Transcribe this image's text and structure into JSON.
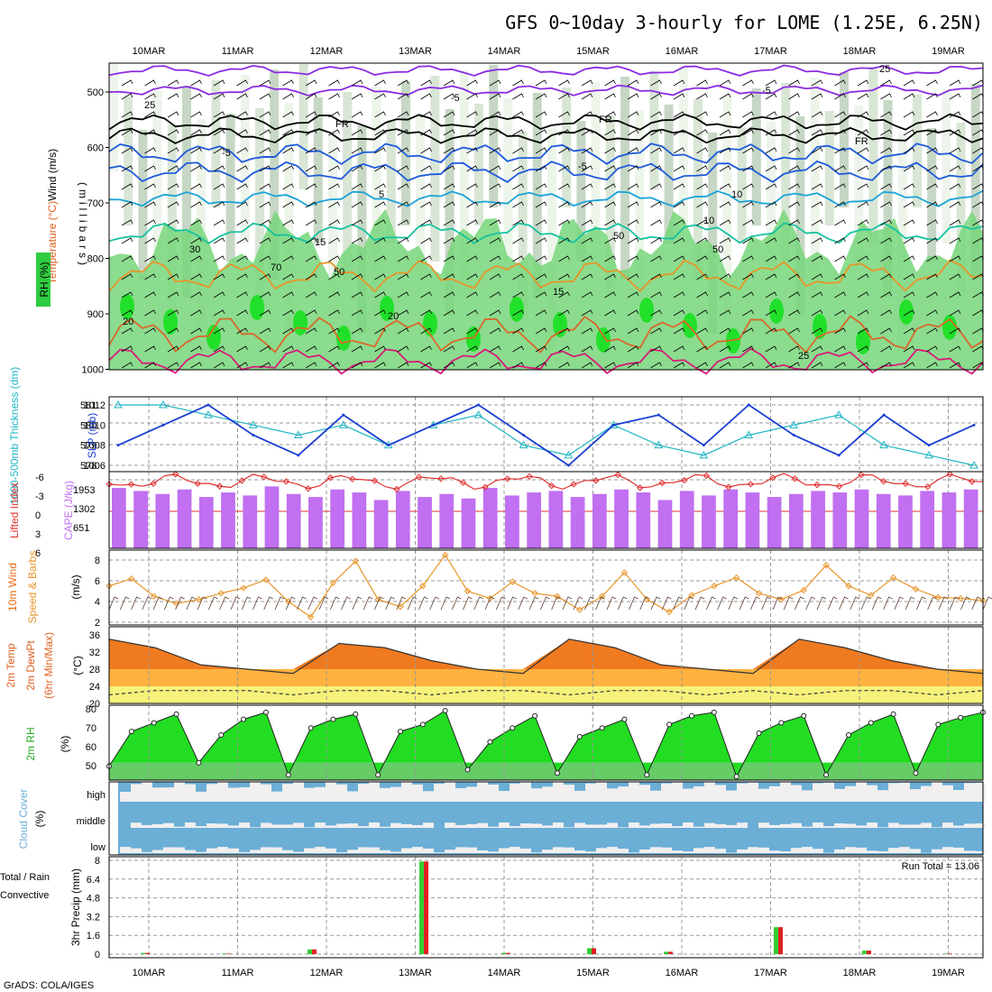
{
  "title": "GFS 0~10day 3-hourly for LOME (1.25E, 6.25N)",
  "credit": "GrADS: COLA/IGES",
  "dates": [
    "10MAR",
    "11MAR",
    "12MAR",
    "13MAR",
    "14MAR",
    "15MAR",
    "16MAR",
    "17MAR",
    "18MAR",
    "19MAR"
  ],
  "colors": {
    "rh_green": "#2ecc40",
    "temp_purple": "#8a2be2",
    "temp_blue": "#1e5adc",
    "temp_cyan": "#1aa3d9",
    "temp_teal": "#17c2a0",
    "temp_orange": "#e8952a",
    "temp_dark_orange": "#d9682a",
    "temp_magenta": "#d81b7a",
    "slp_blue": "#1a3fd1",
    "thickness_cyan": "#1fb5c4",
    "cape_violet": "#c070f0",
    "li_red": "#e03030",
    "wind_orange": "#e8952a",
    "rh2m_green": "#00cc00",
    "cloud_blue": "#6baed6",
    "precip_green": "#33cc33",
    "precip_red": "#e02020"
  },
  "panels": {
    "upper": {
      "y_ticks": [
        "500",
        "600",
        "700",
        "800",
        "900",
        "1000"
      ],
      "left_labels": [
        "Wind (m/s)",
        "Temperature (°C)",
        "RH (%)"
      ],
      "ylabel": "(millibars)",
      "contour_labels": [
        "-5",
        "-5",
        "FR",
        "FR",
        "FR",
        "-5",
        "-5",
        "5",
        "10",
        "10",
        "15",
        "15",
        "20",
        "20",
        "25",
        "25",
        "25",
        "30",
        "50",
        "50",
        "50",
        "70"
      ]
    },
    "slp": {
      "left_ticks": [
        "578",
        "579",
        "580",
        "581"
      ],
      "right_ticks": [
        "1006",
        "1008",
        "1010",
        "1012"
      ],
      "left_label": "1000-500mb Thickness (dm)",
      "right_label": "SLP (mb)"
    },
    "cape": {
      "left_ticks": [
        "-6",
        "-3",
        "0",
        "3",
        "6"
      ],
      "right_ticks": [
        "651",
        "1302",
        "1953"
      ],
      "left_label": "Lifted Index",
      "right_label": "CAPE (J/kg)"
    },
    "wind10": {
      "ticks": [
        "2",
        "4",
        "6",
        "8"
      ],
      "left_label": "10m Wind",
      "mid_label": "Speed & Barbs",
      "unit": "(m/s)"
    },
    "temp2m": {
      "ticks": [
        "20",
        "24",
        "28",
        "32",
        "36"
      ],
      "labels": [
        "2m Temp",
        "2m DewPt",
        "(6hr Min/Max)"
      ],
      "unit": "(°C)"
    },
    "rh2m": {
      "ticks": [
        "50",
        "60",
        "70",
        "80"
      ],
      "label": "2m RH",
      "unit": "(%)"
    },
    "cloud": {
      "levels": [
        "high",
        "middle",
        "low"
      ],
      "label": "Cloud Cover",
      "unit": "(%)"
    },
    "precip": {
      "ticks": [
        "0",
        "1.6",
        "3.2",
        "4.8",
        "6.4",
        "8"
      ],
      "label_total": "Total / Rain",
      "label_conv": "Convective",
      "ylabel": "3hr Precip (mm)",
      "run_total": "Run Total = 13.06"
    }
  },
  "chart_data": [
    {
      "type": "line",
      "title": "1000-500mb Thickness (dm) / SLP (mb)",
      "series": [
        {
          "name": "SLP (mb)",
          "values": [
            1008,
            1010,
            1012,
            1009,
            1007,
            1011,
            1008,
            1010,
            1012,
            1009,
            1006,
            1010,
            1011,
            1008,
            1012,
            1009,
            1007,
            1011,
            1008,
            1010
          ]
        },
        {
          "name": "1000-500mb Thickness (dm)",
          "values": [
            581,
            581,
            580.5,
            580,
            579.5,
            580,
            579,
            580,
            580.5,
            579,
            578.5,
            580,
            579,
            578.5,
            579.5,
            580,
            580.5,
            579,
            578.5,
            578
          ]
        }
      ]
    },
    {
      "type": "bar",
      "title": "CAPE (J/kg)",
      "values": [
        2000,
        1900,
        1800,
        1950,
        1700,
        1850,
        1750,
        2050,
        1800,
        1700,
        1950,
        1850,
        1600,
        1900,
        1700,
        1800,
        1650,
        2000,
        1750,
        1850,
        1900,
        1700,
        1800,
        1950,
        1850,
        1600,
        1900,
        1750,
        1950,
        1850,
        1700,
        1800,
        1900,
        1850,
        1950,
        1800,
        1750,
        1900,
        1850,
        1950
      ]
    },
    {
      "type": "line",
      "title": "10m Wind Speed (m/s)",
      "values": [
        5.5,
        6.2,
        4.5,
        3.8,
        4.2,
        4.8,
        5.3,
        6.1,
        4.0,
        2.5,
        5.8,
        7.9,
        4.2,
        3.5,
        5.5,
        8.5,
        5.0,
        4.3,
        5.9,
        4.8,
        4.5,
        3.2,
        4.5,
        6.8,
        4.2,
        3.0,
        4.6,
        5.5,
        6.3,
        4.8,
        4.2,
        5.1,
        7.5,
        5.5,
        4.6,
        6.3,
        5.2,
        4.4,
        4.3,
        4.1
      ]
    },
    {
      "type": "area",
      "title": "2m Temp / 2m DewPt (°C)",
      "series": [
        {
          "name": "2m Temp",
          "values": [
            35,
            33,
            29,
            28,
            27,
            34,
            33,
            30,
            28,
            27,
            35,
            33,
            29,
            28,
            27,
            35,
            33,
            30,
            28,
            27
          ]
        },
        {
          "name": "2m DewPt",
          "values": [
            22,
            23,
            23,
            23,
            22,
            23,
            23,
            22,
            23,
            23,
            22,
            23,
            23,
            22,
            23,
            22,
            23,
            23,
            22,
            23
          ]
        }
      ]
    },
    {
      "type": "area",
      "title": "2m RH (%)",
      "values": [
        48,
        68,
        73,
        78,
        50,
        66,
        75,
        79,
        43,
        70,
        75,
        78,
        43,
        68,
        72,
        80,
        46,
        62,
        70,
        77,
        44,
        65,
        70,
        75,
        43,
        72,
        77,
        79,
        42,
        67,
        73,
        77,
        43,
        66,
        73,
        78,
        44,
        72,
        76,
        79
      ]
    },
    {
      "type": "bar",
      "title": "3hr Precip (mm)",
      "run_total": 13.06,
      "x": [
        "10MAR",
        "11MAR",
        "12MAR",
        "13MAR",
        "14MAR",
        "15MAR",
        "16MAR",
        "17MAR",
        "18MAR",
        "19MAR"
      ],
      "values": [
        0.1,
        0.05,
        0.4,
        7.9,
        0.1,
        0.5,
        0.2,
        2.3,
        0.3,
        0.05
      ]
    }
  ]
}
